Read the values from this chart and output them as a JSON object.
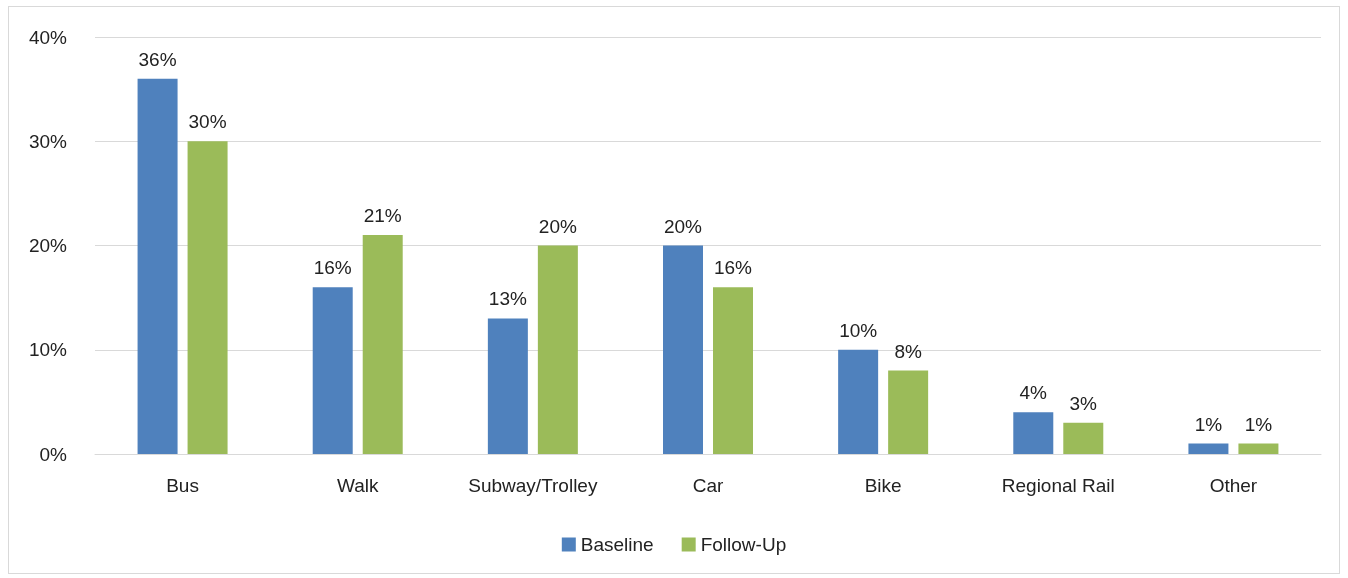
{
  "chart_data": {
    "type": "bar",
    "categories": [
      "Bus",
      "Walk",
      "Subway/Trolley",
      "Car",
      "Bike",
      "Regional Rail",
      "Other"
    ],
    "series": [
      {
        "name": "Baseline",
        "color": "#4f81bd",
        "values": [
          36,
          16,
          13,
          20,
          10,
          4,
          1
        ],
        "value_labels": [
          "36%",
          "16%",
          "13%",
          "20%",
          "10%",
          "4%",
          "1%"
        ]
      },
      {
        "name": "Follow-Up",
        "color": "#9bbb59",
        "values": [
          30,
          21,
          20,
          16,
          8,
          3,
          1
        ],
        "value_labels": [
          "30%",
          "21%",
          "20%",
          "16%",
          "8%",
          "3%",
          "1%"
        ]
      }
    ],
    "ylim": [
      0,
      40
    ],
    "yticks": [
      {
        "value": 0,
        "label": "0%"
      },
      {
        "value": 10,
        "label": "10%"
      },
      {
        "value": 20,
        "label": "20%"
      },
      {
        "value": 30,
        "label": "30%"
      },
      {
        "value": 40,
        "label": "40%"
      }
    ],
    "grid": "y",
    "legend": "bottom"
  }
}
